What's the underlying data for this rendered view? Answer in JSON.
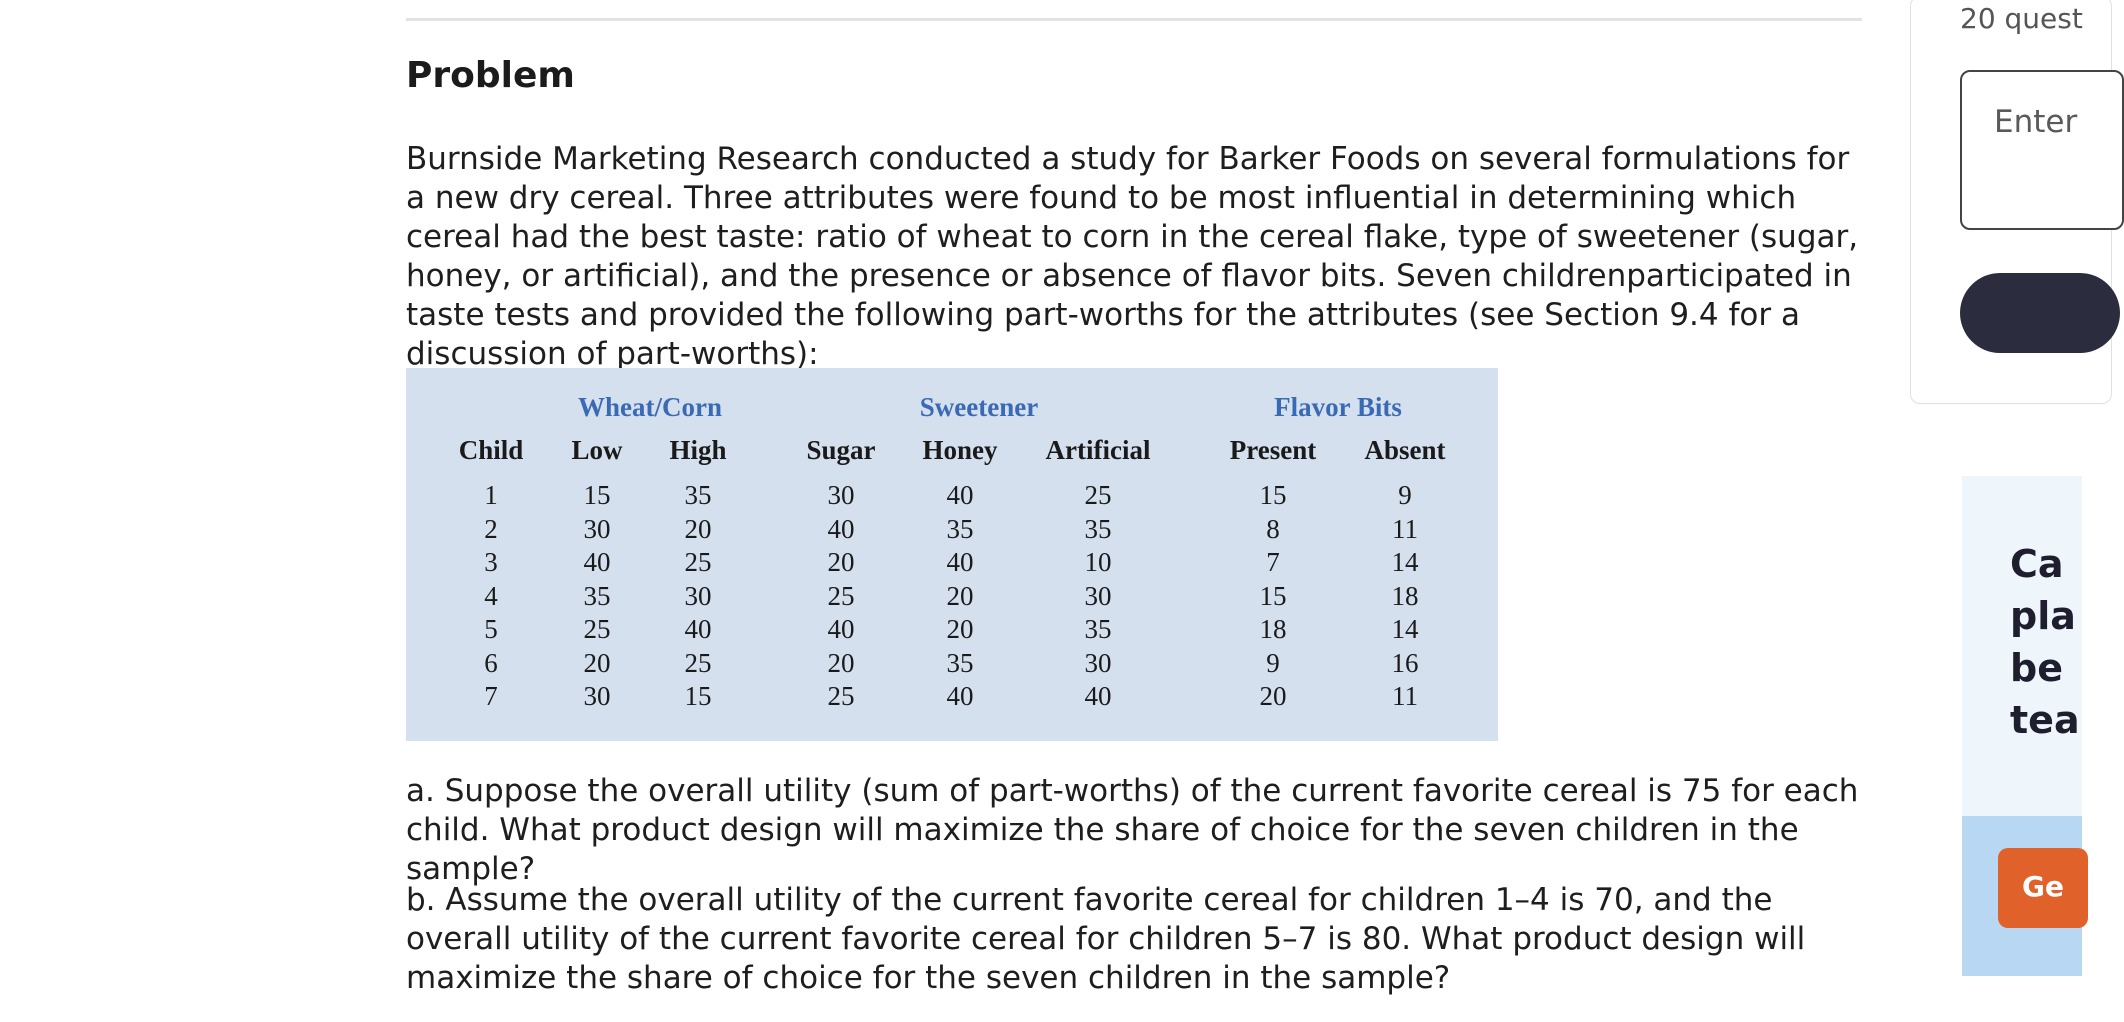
{
  "problem": {
    "heading": "Problem",
    "intro": "Burnside Marketing Research conducted a study for Barker Foods on several formulations for a new dry cereal. Three attributes were found to be most influential in determining which cereal had the best taste: ratio of wheat to corn in the cereal flake, type of sweetener (sugar, honey, or artificial), and the presence or absence of flavor bits. Seven childrenparticipated in taste tests and provided the following part-worths for the attributes (see Section 9.4 for a discussion of part-worths):",
    "question_a": "a. Suppose the overall utility (sum of part-worths) of the current favorite cereal is 75 for each child. What product design will maximize the share of choice for the seven children in the sample?",
    "question_b": "b. Assume the overall utility of the current favorite cereal for children 1–4 is 70, and the overall utility of the current favorite cereal for children 5–7 is 80. What product design will maximize the share of choice for the seven children in the sample?"
  },
  "table": {
    "groups": [
      "Wheat/Corn",
      "Sweetener",
      "Flavor Bits"
    ],
    "headers": [
      "Child",
      "Low",
      "High",
      "Sugar",
      "Honey",
      "Artificial",
      "Present",
      "Absent"
    ],
    "rows": [
      [
        "1",
        "15",
        "35",
        "30",
        "40",
        "25",
        "15",
        "9"
      ],
      [
        "2",
        "30",
        "20",
        "40",
        "35",
        "35",
        "8",
        "11"
      ],
      [
        "3",
        "40",
        "25",
        "20",
        "40",
        "10",
        "7",
        "14"
      ],
      [
        "4",
        "35",
        "30",
        "25",
        "20",
        "30",
        "15",
        "18"
      ],
      [
        "5",
        "25",
        "40",
        "40",
        "20",
        "35",
        "18",
        "14"
      ],
      [
        "6",
        "20",
        "25",
        "20",
        "35",
        "30",
        "9",
        "16"
      ],
      [
        "7",
        "30",
        "15",
        "25",
        "40",
        "40",
        "20",
        "11"
      ]
    ]
  },
  "sidebar": {
    "question_count": "20 quest",
    "input_placeholder": "Enter",
    "promo_title": "Ca\npla\nbe\ntea",
    "promo_button": "Ge"
  },
  "colors": {
    "table_bg": "#d5e0ef",
    "group_header": "#3a6ab3",
    "submit_button": "#2c2c3f",
    "promo_button": "#e0622a"
  }
}
